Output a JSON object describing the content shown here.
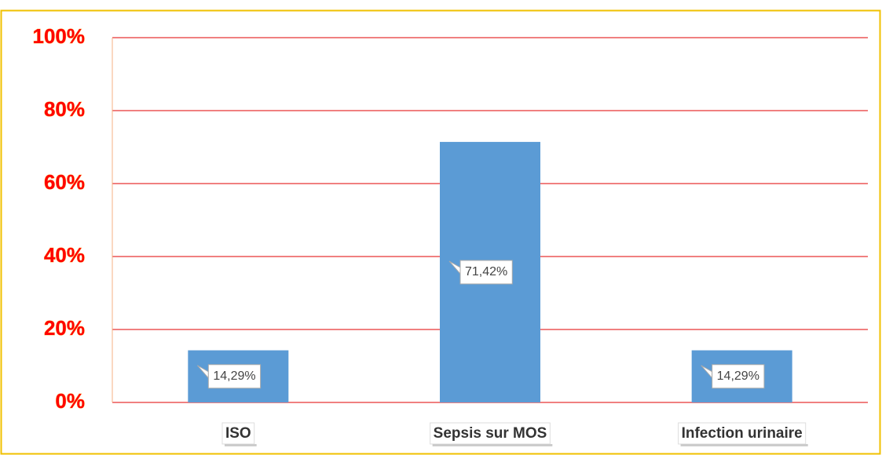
{
  "chart_data": {
    "type": "bar",
    "categories": [
      "ISO",
      "Sepsis sur MOS",
      "Infection urinaire"
    ],
    "values": [
      14.29,
      71.42,
      14.29
    ],
    "value_labels": [
      "14,29%",
      "71,42%",
      "14,29%"
    ],
    "color": "#5b9bd5",
    "ylim": [
      0,
      100
    ],
    "yticks": [
      {
        "value": 0,
        "label": "0%"
      },
      {
        "value": 20,
        "label": "20%"
      },
      {
        "value": 40,
        "label": "40%"
      },
      {
        "value": 60,
        "label": "60%"
      },
      {
        "value": 80,
        "label": "80%"
      },
      {
        "value": 100,
        "label": "100%"
      }
    ],
    "grid": true,
    "grid_color": "#e00000"
  }
}
